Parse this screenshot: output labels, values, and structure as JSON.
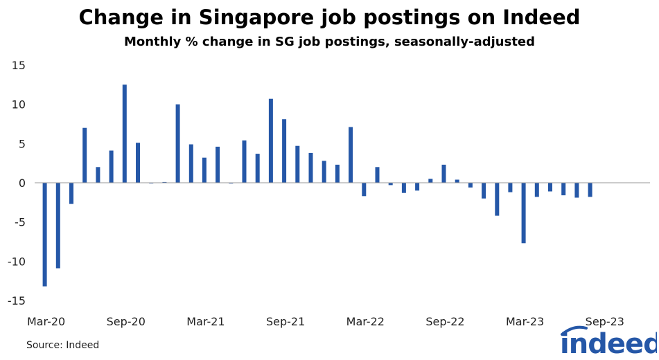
{
  "chart_data": {
    "type": "bar",
    "title": "Change in Singapore job postings on Indeed",
    "subtitle": "Monthly % change in SG job postings, seasonally-adjusted",
    "source": "Source: Indeed",
    "color": "#2557a7",
    "ylim": [
      -15,
      15
    ],
    "yticks": [
      15,
      10,
      5,
      0,
      -5,
      -10,
      -15
    ],
    "xtick_labels": [
      "Mar-20",
      "Sep-20",
      "Mar-21",
      "Sep-21",
      "Mar-22",
      "Sep-22",
      "Mar-23",
      "Sep-23"
    ],
    "categories": [
      "Mar-20",
      "Apr-20",
      "May-20",
      "Jun-20",
      "Jul-20",
      "Aug-20",
      "Sep-20",
      "Oct-20",
      "Nov-20",
      "Dec-20",
      "Jan-21",
      "Feb-21",
      "Mar-21",
      "Apr-21",
      "May-21",
      "Jun-21",
      "Jul-21",
      "Aug-21",
      "Sep-21",
      "Oct-21",
      "Nov-21",
      "Dec-21",
      "Jan-22",
      "Feb-22",
      "Mar-22",
      "Apr-22",
      "May-22",
      "Jun-22",
      "Jul-22",
      "Aug-22",
      "Sep-22",
      "Oct-22",
      "Nov-22",
      "Dec-22",
      "Jan-23",
      "Feb-23",
      "Mar-23",
      "Apr-23",
      "May-23",
      "Jun-23",
      "Jul-23",
      "Aug-23",
      "Sep-23",
      "Oct-23",
      "Nov-23",
      "Dec-23"
    ],
    "values": [
      -13.2,
      -10.9,
      -2.7,
      7.0,
      2.0,
      4.1,
      12.5,
      5.1,
      0.0,
      0.1,
      10.0,
      4.9,
      3.2,
      4.6,
      -0.1,
      5.4,
      3.7,
      10.7,
      8.1,
      4.7,
      3.8,
      2.8,
      2.3,
      7.1,
      -1.7,
      2.0,
      -0.3,
      -1.3,
      -1.0,
      0.5,
      2.3,
      0.4,
      -0.6,
      -2.0,
      -4.2,
      -1.2,
      -7.7,
      -1.8,
      -1.1,
      -1.6,
      -1.9,
      -1.8,
      null,
      null,
      null,
      null
    ]
  },
  "logo": {
    "text": "indeed"
  }
}
